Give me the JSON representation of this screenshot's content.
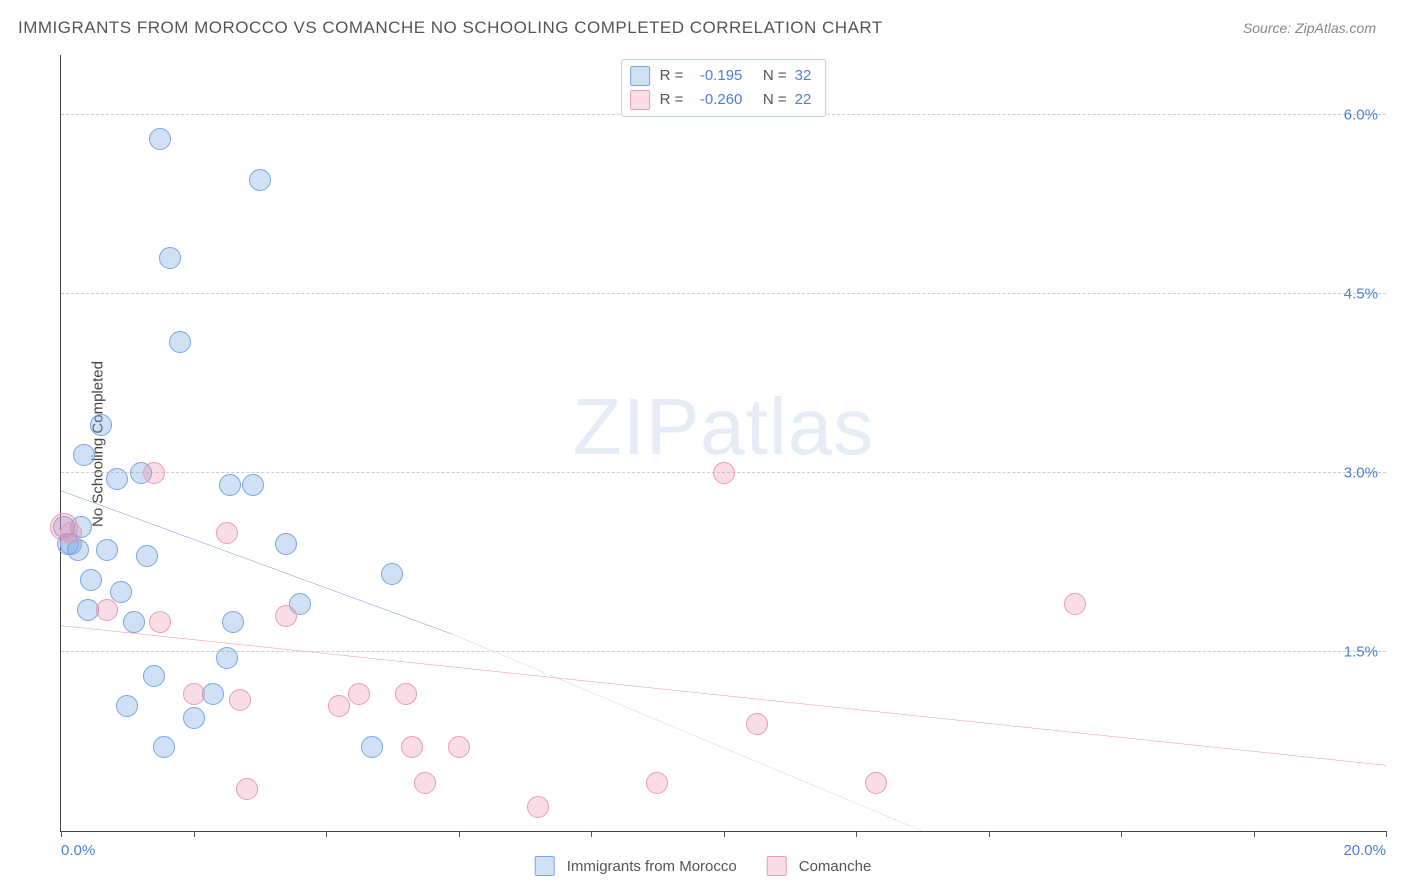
{
  "header": {
    "title": "IMMIGRANTS FROM MOROCCO VS COMANCHE NO SCHOOLING COMPLETED CORRELATION CHART",
    "source_prefix": "Source: ",
    "source": "ZipAtlas.com"
  },
  "chart": {
    "type": "scatter",
    "ylabel": "No Schooling Completed",
    "xlim": [
      0,
      20
    ],
    "ylim": [
      0,
      6.5
    ],
    "x_ticks": [
      0,
      2,
      4,
      6,
      8,
      10,
      12,
      14,
      16,
      18,
      20
    ],
    "x_tick_labels": {
      "0": "0.0%",
      "20": "20.0%"
    },
    "y_gridlines": [
      1.5,
      3.0,
      4.5,
      6.0
    ],
    "y_tick_labels": [
      "1.5%",
      "3.0%",
      "4.5%",
      "6.0%"
    ],
    "background_color": "#ffffff",
    "grid_color": "#cccccc",
    "axis_color": "#444444",
    "watermark": {
      "part1": "ZIP",
      "part2": "atlas"
    },
    "series": [
      {
        "key": "morocco",
        "name": "Immigrants from Morocco",
        "fill": "rgba(120,165,225,0.35)",
        "stroke": "#7aa6e0",
        "marker_radius": 11,
        "line_color": "#2f63c0",
        "R": "-0.195",
        "N": "32",
        "trendline": {
          "x1": 0,
          "y1": 2.85,
          "x2": 5.9,
          "y2": 1.65,
          "dash_to_x": 13.0,
          "dash_to_y": 0.0
        },
        "points": [
          {
            "x": 0.05,
            "y": 2.55
          },
          {
            "x": 0.1,
            "y": 2.4
          },
          {
            "x": 0.15,
            "y": 2.4
          },
          {
            "x": 0.25,
            "y": 2.35
          },
          {
            "x": 0.3,
            "y": 2.55
          },
          {
            "x": 0.35,
            "y": 3.15
          },
          {
            "x": 0.45,
            "y": 2.1
          },
          {
            "x": 0.4,
            "y": 1.85
          },
          {
            "x": 0.6,
            "y": 3.4
          },
          {
            "x": 0.7,
            "y": 2.35
          },
          {
            "x": 0.85,
            "y": 2.95
          },
          {
            "x": 0.9,
            "y": 2.0
          },
          {
            "x": 1.0,
            "y": 1.05
          },
          {
            "x": 1.1,
            "y": 1.75
          },
          {
            "x": 1.2,
            "y": 3.0
          },
          {
            "x": 1.3,
            "y": 2.3
          },
          {
            "x": 1.4,
            "y": 1.3
          },
          {
            "x": 1.5,
            "y": 5.8
          },
          {
            "x": 1.55,
            "y": 0.7
          },
          {
            "x": 1.65,
            "y": 4.8
          },
          {
            "x": 1.8,
            "y": 4.1
          },
          {
            "x": 2.0,
            "y": 0.95
          },
          {
            "x": 2.3,
            "y": 1.15
          },
          {
            "x": 2.5,
            "y": 1.45
          },
          {
            "x": 2.55,
            "y": 2.9
          },
          {
            "x": 2.6,
            "y": 1.75
          },
          {
            "x": 2.9,
            "y": 2.9
          },
          {
            "x": 3.0,
            "y": 5.45
          },
          {
            "x": 3.4,
            "y": 2.4
          },
          {
            "x": 3.6,
            "y": 1.9
          },
          {
            "x": 4.7,
            "y": 0.7
          },
          {
            "x": 5.0,
            "y": 2.15
          }
        ]
      },
      {
        "key": "comanche",
        "name": "Comanche",
        "fill": "rgba(235,140,170,0.30)",
        "stroke": "#e89cb5",
        "marker_radius": 11,
        "line_color": "#e55a8a",
        "R": "-0.260",
        "N": "22",
        "trendline": {
          "x1": 0,
          "y1": 1.72,
          "x2": 20,
          "y2": 0.55
        },
        "points": [
          {
            "x": 0.05,
            "y": 2.55,
            "r": 14
          },
          {
            "x": 0.15,
            "y": 2.5
          },
          {
            "x": 0.7,
            "y": 1.85
          },
          {
            "x": 1.4,
            "y": 3.0
          },
          {
            "x": 1.5,
            "y": 1.75
          },
          {
            "x": 2.0,
            "y": 1.15
          },
          {
            "x": 2.5,
            "y": 2.5
          },
          {
            "x": 2.7,
            "y": 1.1
          },
          {
            "x": 2.8,
            "y": 0.35
          },
          {
            "x": 3.4,
            "y": 1.8
          },
          {
            "x": 4.2,
            "y": 1.05
          },
          {
            "x": 4.5,
            "y": 1.15
          },
          {
            "x": 5.2,
            "y": 1.15
          },
          {
            "x": 5.3,
            "y": 0.7
          },
          {
            "x": 5.5,
            "y": 0.4
          },
          {
            "x": 6.0,
            "y": 0.7
          },
          {
            "x": 7.2,
            "y": 0.2
          },
          {
            "x": 9.0,
            "y": 0.4
          },
          {
            "x": 10.0,
            "y": 3.0
          },
          {
            "x": 10.5,
            "y": 0.9
          },
          {
            "x": 12.3,
            "y": 0.4
          },
          {
            "x": 15.3,
            "y": 1.9
          }
        ]
      }
    ],
    "legend_top": {
      "R_label": "R =",
      "N_label": "N ="
    }
  }
}
